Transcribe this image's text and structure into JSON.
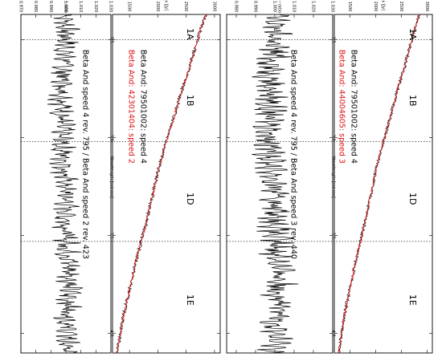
{
  "chart_data": [
    {
      "type": "line",
      "orientation": "rotated-90-clockwise",
      "x_axis": {
        "label": "Wavelength [micron]",
        "ticks": [
          "2.5",
          "3.0",
          "3.5",
          "4.0"
        ],
        "range": [
          2.37,
          4.1
        ]
      },
      "flux_axis": {
        "label": "Flux [Jy]",
        "ticks": [
          "1500",
          "2000",
          "2500",
          "3000"
        ],
        "range": [
          1200,
          3100
        ]
      },
      "ratio_axis": {
        "label": "Flux−ratio",
        "ticks": [
          "0.970",
          "0.980",
          "0.990",
          "1.000",
          "1.010",
          "1.020",
          "1.030"
        ],
        "range": [
          0.97,
          1.03
        ]
      },
      "bands": [
        {
          "label": "1A",
          "x": 2.44
        },
        {
          "label": "1B",
          "x": 2.78
        },
        {
          "label": "1D",
          "x": 3.28
        },
        {
          "label": "1E",
          "x": 3.8
        }
      ],
      "band_boundaries": [
        2.5,
        3.02,
        3.53
      ],
      "legend": [
        {
          "text": "Beta And: 79501002: speed 4",
          "color": "#000000"
        },
        {
          "text": "Beta And: 42301404: speed 2",
          "color": "#dd1111"
        }
      ],
      "ratio_annotation": "Beta And speed 4 rev. 795 / Beta And speed 2 rev. 423",
      "series": [
        {
          "name": "Beta And: 79501002: speed 4",
          "color": "#000000",
          "x": [
            2.37,
            2.45,
            2.55,
            2.65,
            2.75,
            2.9,
            3.02,
            3.15,
            3.3,
            3.45,
            3.6,
            3.75,
            3.9,
            4.1
          ],
          "y": [
            2850,
            2750,
            2650,
            2550,
            2430,
            2280,
            2150,
            2020,
            1900,
            1780,
            1640,
            1520,
            1400,
            1280
          ]
        },
        {
          "name": "Beta And: 42301404: speed 2",
          "color": "#dd1111",
          "x": [
            2.37,
            2.45,
            2.55,
            2.65,
            2.75,
            2.9,
            3.02,
            3.15,
            3.3,
            3.45,
            3.6,
            3.75,
            3.9,
            4.1
          ],
          "y": [
            2850,
            2750,
            2650,
            2550,
            2430,
            2280,
            2150,
            2020,
            1900,
            1780,
            1640,
            1520,
            1400,
            1280
          ]
        }
      ],
      "ratio_series": {
        "x": [
          2.37,
          2.5,
          2.7,
          3.0,
          3.3,
          3.5,
          3.7,
          4.1
        ],
        "y": [
          1.0,
          1.0,
          0.998,
          0.997,
          1.0,
          1.0,
          1.003,
          1.0
        ]
      }
    },
    {
      "type": "line",
      "orientation": "rotated-90-clockwise",
      "x_axis": {
        "label": "Wavelength [micron]",
        "ticks": [
          "2.5",
          "3.0",
          "3.5",
          "4.0"
        ],
        "range": [
          2.37,
          4.1
        ]
      },
      "flux_axis": {
        "label": "Flux [Jy]",
        "ticks": [
          "1500",
          "2000",
          "2500",
          "3000"
        ],
        "range": [
          1200,
          3100
        ]
      },
      "ratio_axis": {
        "label": "Flux−ratio",
        "ticks": [
          "0.980",
          "0.990",
          "1.000",
          "1.010",
          "1.020",
          "1.030"
        ],
        "range": [
          0.975,
          1.03
        ]
      },
      "bands": [
        {
          "label": "1A",
          "x": 2.44
        },
        {
          "label": "1B",
          "x": 2.78
        },
        {
          "label": "1D",
          "x": 3.28
        },
        {
          "label": "1E",
          "x": 3.8
        }
      ],
      "band_boundaries": [
        2.5,
        3.02,
        3.53
      ],
      "legend": [
        {
          "text": "Beta And: 79501002: speed 4",
          "color": "#000000"
        },
        {
          "text": "Beta And: 44004605: speed 3",
          "color": "#dd1111"
        }
      ],
      "ratio_annotation": "Beta And speed 4 rev. 795 / Beta And speed 3 rev. 440",
      "series": [
        {
          "name": "Beta And: 79501002: speed 4",
          "color": "#000000",
          "x": [
            2.37,
            2.45,
            2.55,
            2.65,
            2.75,
            2.9,
            3.02,
            3.15,
            3.3,
            3.45,
            3.6,
            3.75,
            3.9,
            4.1
          ],
          "y": [
            2850,
            2750,
            2650,
            2550,
            2430,
            2280,
            2150,
            2020,
            1900,
            1780,
            1640,
            1520,
            1400,
            1280
          ]
        },
        {
          "name": "Beta And: 44004605: speed 3",
          "color": "#dd1111",
          "x": [
            2.37,
            2.45,
            2.55,
            2.65,
            2.75,
            2.9,
            3.02,
            3.15,
            3.3,
            3.45,
            3.6,
            3.75,
            3.9,
            4.1
          ],
          "y": [
            2850,
            2750,
            2650,
            2550,
            2430,
            2280,
            2150,
            2020,
            1900,
            1780,
            1640,
            1520,
            1400,
            1280
          ]
        }
      ],
      "ratio_series": {
        "x": [
          2.37,
          2.5,
          2.7,
          3.0,
          3.3,
          3.5,
          3.7,
          4.1
        ],
        "y": [
          1.0,
          1.0,
          0.998,
          0.997,
          1.0,
          1.0,
          1.003,
          1.0
        ]
      }
    }
  ]
}
